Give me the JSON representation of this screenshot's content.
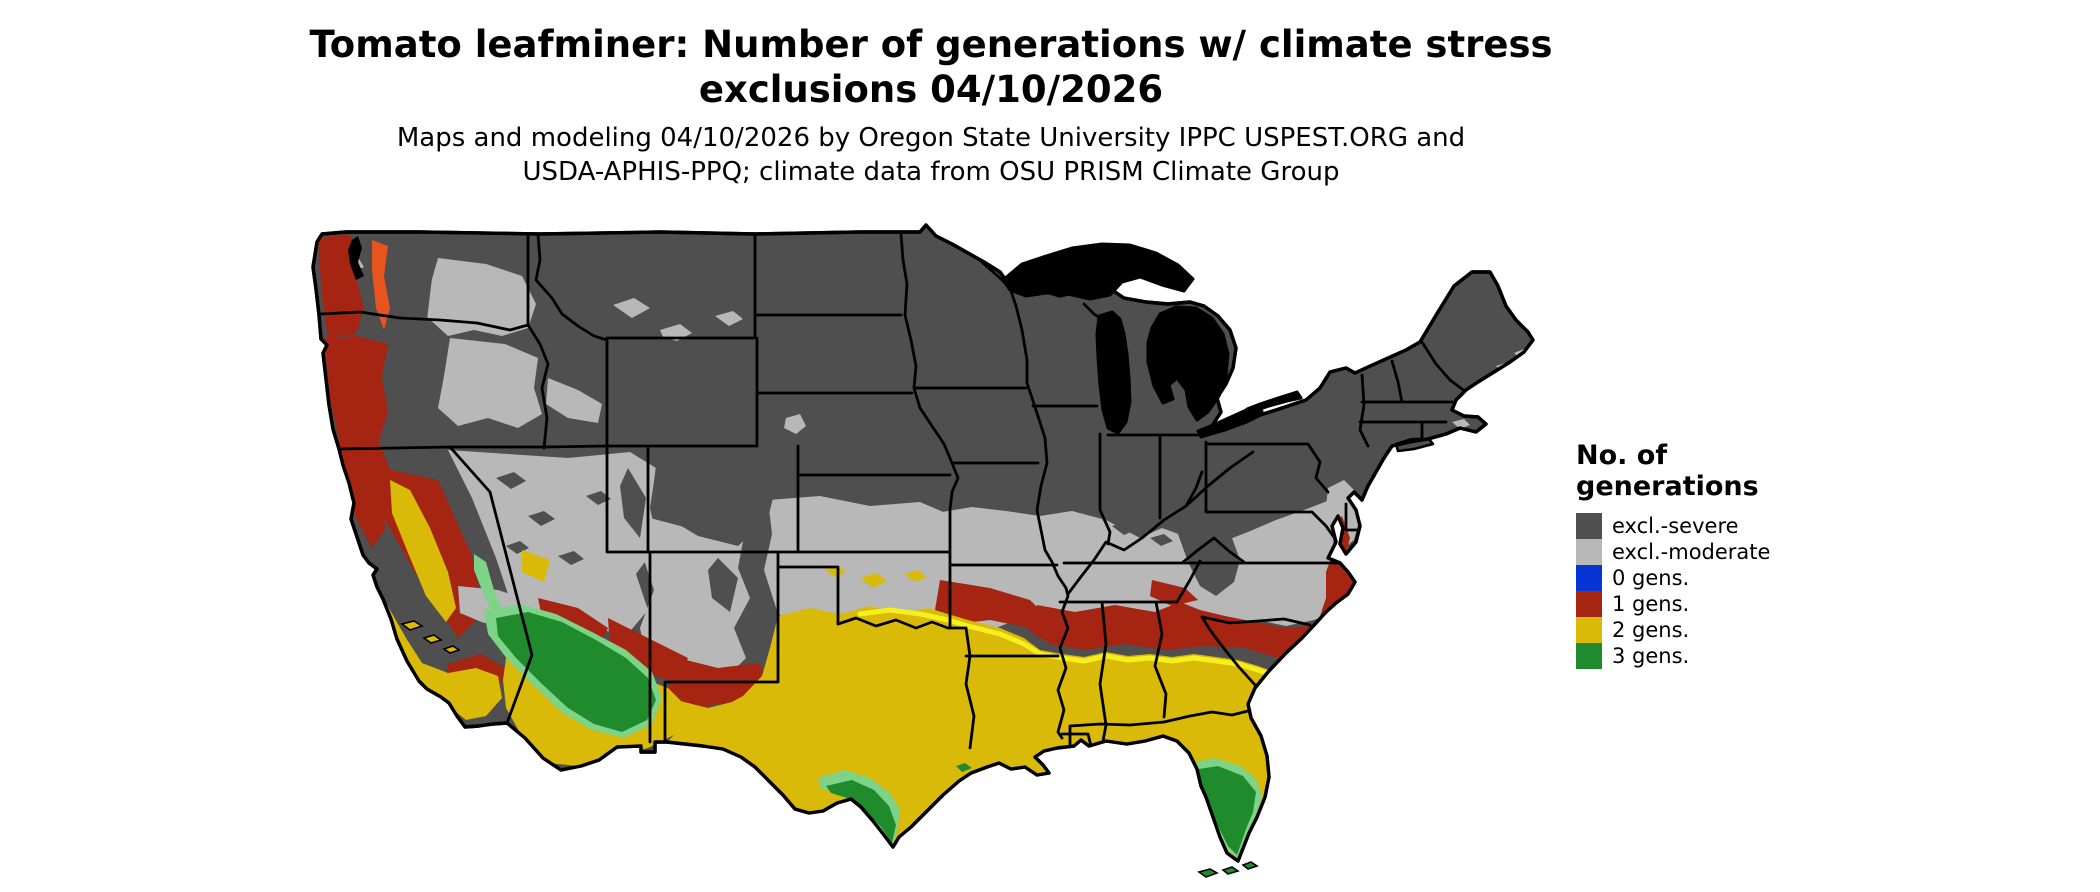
{
  "title": {
    "line1": "Tomato leafminer: Number of generations w/ climate stress",
    "line2": "exclusions 04/10/2026"
  },
  "subtitle": {
    "line1": "Maps and modeling 04/10/2026 by Oregon State University IPPC USPEST.ORG and",
    "line2": "USDA-APHIS-PPQ; climate data from OSU PRISM Climate Group"
  },
  "legend": {
    "title_line1": "No. of",
    "title_line2": "generations",
    "items": [
      {
        "label": "excl.-severe",
        "color": "#4f4f4f"
      },
      {
        "label": "excl.-moderate",
        "color": "#b8b8b8"
      },
      {
        "label": "0 gens.",
        "color": "#0734d4"
      },
      {
        "label": "1 gens.",
        "color": "#a52512"
      },
      {
        "label": "2 gens.",
        "color": "#d9ba08"
      },
      {
        "label": "3 gens.",
        "color": "#1f8b2c"
      }
    ]
  },
  "colors": {
    "severe": "#4f4f4f",
    "moderate": "#b8b8b8",
    "gens0": "#0734d4",
    "gens1": "#a52512",
    "gens2": "#d9ba08",
    "gens3": "#1f8b2c",
    "gens3_fringe": "#7dd387",
    "gens2_fringe": "#f4ef1d",
    "orange": "#e8541e",
    "water": "#000000",
    "lake_fill": "#ffffff",
    "border": "#000000",
    "background": "#ffffff"
  }
}
